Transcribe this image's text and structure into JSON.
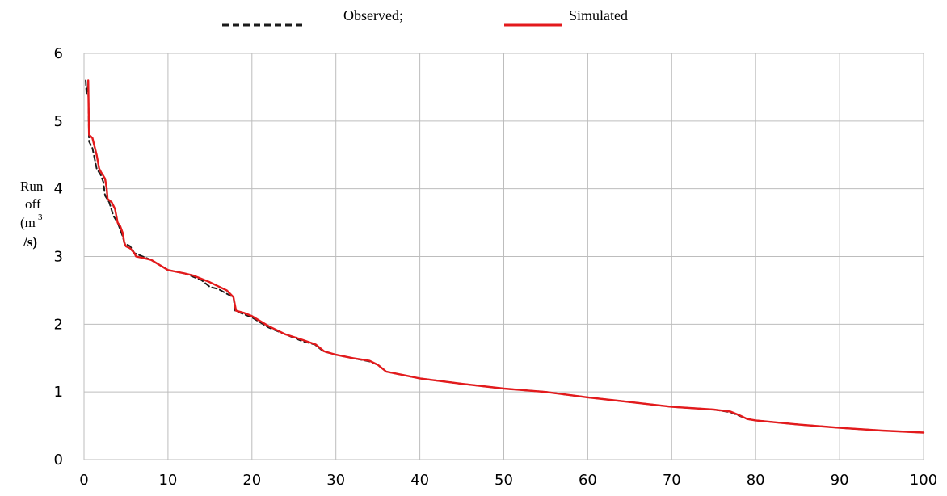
{
  "chart_data": {
    "type": "line",
    "title": "",
    "xlabel": "",
    "ylabel": {
      "line1": "Run",
      "line2": "off",
      "line3": "(m",
      "superscript": "3",
      "line4": "/s)"
    },
    "xlim": [
      0,
      100
    ],
    "ylim": [
      0,
      6
    ],
    "x_ticks": [
      "0",
      "10",
      "20",
      "30",
      "40",
      "50",
      "60",
      "70",
      "80",
      "90",
      "100"
    ],
    "y_ticks": [
      "0",
      "1",
      "2",
      "3",
      "4",
      "5",
      "6"
    ],
    "grid": true,
    "legend_position": "top-center",
    "series": [
      {
        "name": "Observed;",
        "style": "dashed",
        "color": "#1a1a1a",
        "points": [
          [
            0.2,
            5.6
          ],
          [
            0.3,
            5.4
          ],
          [
            0.5,
            5.55
          ],
          [
            0.6,
            4.7
          ],
          [
            1.0,
            4.6
          ],
          [
            1.5,
            4.3
          ],
          [
            2.0,
            4.2
          ],
          [
            2.3,
            4.1
          ],
          [
            2.5,
            3.9
          ],
          [
            3.0,
            3.8
          ],
          [
            3.5,
            3.6
          ],
          [
            4.0,
            3.5
          ],
          [
            4.3,
            3.4
          ],
          [
            4.6,
            3.3
          ],
          [
            4.8,
            3.2
          ],
          [
            5.5,
            3.15
          ],
          [
            6.0,
            3.05
          ],
          [
            7.0,
            3.0
          ],
          [
            8.0,
            2.95
          ],
          [
            10.0,
            2.8
          ],
          [
            12.0,
            2.75
          ],
          [
            14.0,
            2.65
          ],
          [
            15.0,
            2.55
          ],
          [
            16.0,
            2.52
          ],
          [
            17.0,
            2.45
          ],
          [
            17.8,
            2.4
          ],
          [
            18.0,
            2.2
          ],
          [
            19.0,
            2.15
          ],
          [
            20.0,
            2.1
          ],
          [
            22.0,
            1.95
          ],
          [
            24.0,
            1.85
          ],
          [
            26.0,
            1.75
          ],
          [
            27.5,
            1.7
          ],
          [
            28.5,
            1.6
          ],
          [
            30.0,
            1.55
          ],
          [
            32.0,
            1.5
          ],
          [
            34.0,
            1.45
          ],
          [
            35.0,
            1.4
          ],
          [
            36.0,
            1.3
          ],
          [
            38.0,
            1.25
          ],
          [
            40.0,
            1.2
          ],
          [
            45.0,
            1.12
          ],
          [
            50.0,
            1.05
          ],
          [
            55.0,
            1.0
          ],
          [
            60.0,
            0.92
          ],
          [
            65.0,
            0.85
          ],
          [
            70.0,
            0.78
          ],
          [
            75.0,
            0.74
          ],
          [
            77.0,
            0.7
          ],
          [
            78.0,
            0.65
          ],
          [
            79.0,
            0.6
          ],
          [
            80.0,
            0.58
          ],
          [
            85.0,
            0.52
          ],
          [
            90.0,
            0.47
          ],
          [
            95.0,
            0.43
          ],
          [
            100.0,
            0.4
          ]
        ]
      },
      {
        "name": "Simulated",
        "style": "solid",
        "color": "#e31a1c",
        "points": [
          [
            0.5,
            5.6
          ],
          [
            0.6,
            4.8
          ],
          [
            1.0,
            4.75
          ],
          [
            1.5,
            4.5
          ],
          [
            1.8,
            4.3
          ],
          [
            2.0,
            4.25
          ],
          [
            2.5,
            4.15
          ],
          [
            2.7,
            4.0
          ],
          [
            2.8,
            3.85
          ],
          [
            3.3,
            3.8
          ],
          [
            3.7,
            3.7
          ],
          [
            4.0,
            3.5
          ],
          [
            4.3,
            3.45
          ],
          [
            4.6,
            3.35
          ],
          [
            4.8,
            3.2
          ],
          [
            5.0,
            3.15
          ],
          [
            5.5,
            3.12
          ],
          [
            6.0,
            3.05
          ],
          [
            6.2,
            3.0
          ],
          [
            7.0,
            2.98
          ],
          [
            8.0,
            2.95
          ],
          [
            10.0,
            2.8
          ],
          [
            12.0,
            2.75
          ],
          [
            13.0,
            2.72
          ],
          [
            15.0,
            2.62
          ],
          [
            17.0,
            2.5
          ],
          [
            17.8,
            2.4
          ],
          [
            18.1,
            2.2
          ],
          [
            19.0,
            2.17
          ],
          [
            20.0,
            2.12
          ],
          [
            22.0,
            1.97
          ],
          [
            24.0,
            1.85
          ],
          [
            26.0,
            1.77
          ],
          [
            27.6,
            1.7
          ],
          [
            28.6,
            1.6
          ],
          [
            30.0,
            1.55
          ],
          [
            32.0,
            1.5
          ],
          [
            34.0,
            1.46
          ],
          [
            35.0,
            1.4
          ],
          [
            36.0,
            1.3
          ],
          [
            38.0,
            1.25
          ],
          [
            40.0,
            1.2
          ],
          [
            45.0,
            1.12
          ],
          [
            50.0,
            1.05
          ],
          [
            55.0,
            1.0
          ],
          [
            60.0,
            0.92
          ],
          [
            65.0,
            0.85
          ],
          [
            70.0,
            0.78
          ],
          [
            75.0,
            0.74
          ],
          [
            77.0,
            0.71
          ],
          [
            78.0,
            0.66
          ],
          [
            79.0,
            0.6
          ],
          [
            80.0,
            0.58
          ],
          [
            85.0,
            0.52
          ],
          [
            90.0,
            0.47
          ],
          [
            95.0,
            0.43
          ],
          [
            100.0,
            0.4
          ]
        ]
      }
    ]
  }
}
